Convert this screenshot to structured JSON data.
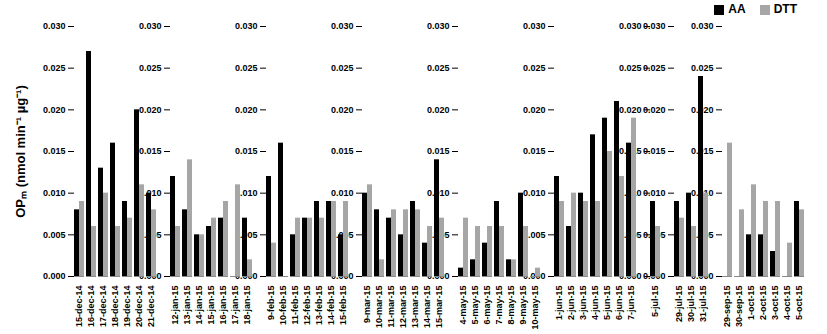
{
  "chart_data": {
    "type": "bar",
    "y_label": "OPₘ (nmol min⁻¹ µg⁻¹)",
    "categories": [
      "15-dec-14",
      "16-dec-14",
      "17-dec-14",
      "18-dec-14",
      "19-dec-14",
      "20-dec-14",
      "21-dec-14",
      null,
      "12-jan-15",
      "13-jan-15",
      "14-jan-15",
      "15-jan-15",
      "16-jan-15",
      "17-jan-15",
      "18-jan-15",
      null,
      "9-feb-15",
      "10-feb-15",
      "11-feb-15",
      "12-feb-15",
      "13-feb-15",
      "14-feb-15",
      "15-feb-15",
      null,
      "9-mar-15",
      "10-mar-15",
      "11-mar-15",
      "12-mar-15",
      "13-mar-15",
      "14-mar-15",
      "15-mar-15",
      null,
      "4-may-15",
      "5-may-15",
      "6-may-15",
      "7-may-15",
      "8-may-15",
      "9-may-15",
      "10-may-15",
      null,
      "1-jun-15",
      "2-jun-15",
      "3-jun-15",
      "4-jun-15",
      "5-jun-15",
      "6-jun-15",
      "7-jun-15",
      null,
      "5-jul-15",
      null,
      "29-jul-15",
      "30-jul-15",
      "31-jul-15",
      null,
      "29-sep-15",
      "30-sep-15",
      "1-oct-15",
      "2-oct-15",
      "3-oct-15",
      "4-oct-15",
      "5-oct-15"
    ],
    "series": [
      {
        "name": "AA",
        "color": "#000000",
        "values": [
          0.008,
          0.027,
          0.013,
          0.016,
          0.009,
          0.02,
          0.01,
          null,
          0.012,
          0.008,
          0.005,
          0.006,
          0.007,
          null,
          0.007,
          null,
          0.012,
          0.016,
          0.005,
          0.007,
          0.009,
          0.009,
          0.005,
          null,
          0.01,
          0.008,
          0.007,
          0.005,
          0.009,
          0.004,
          0.014,
          null,
          0.001,
          0.002,
          0.004,
          0.009,
          0.002,
          0.01,
          null,
          null,
          0.012,
          0.006,
          0.01,
          0.017,
          0.019,
          0.021,
          0.016,
          null,
          0.009,
          null,
          0.009,
          0.01,
          0.024,
          null,
          null,
          null,
          0.005,
          0.005,
          0.003,
          null,
          0.009
        ]
      },
      {
        "name": "DTT",
        "color": "#a6a6a6",
        "values": [
          0.009,
          0.006,
          0.01,
          0.006,
          0.007,
          0.011,
          0.008,
          null,
          0.006,
          0.014,
          0.005,
          0.007,
          0.009,
          0.011,
          0.002,
          null,
          0.004,
          null,
          0.007,
          0.007,
          0.007,
          0.009,
          0.009,
          null,
          0.011,
          0.002,
          0.008,
          0.008,
          0.008,
          0.006,
          0.007,
          null,
          0.007,
          0.006,
          0.006,
          0.006,
          0.002,
          0.006,
          0.001,
          null,
          0.009,
          0.01,
          0.009,
          0.009,
          0.015,
          0.012,
          0.019,
          null,
          0.006,
          null,
          0.007,
          0.006,
          0.01,
          null,
          0.016,
          0.008,
          0.011,
          0.009,
          0.009,
          0.004,
          0.008
        ]
      }
    ],
    "ylim": [
      0,
      0.03
    ],
    "yticks": [
      {
        "value": 0,
        "label": "0.000"
      },
      {
        "value": 0.005,
        "label": "0.005"
      },
      {
        "value": 0.01,
        "label": "0.010"
      },
      {
        "value": 0.015,
        "label": "0.015"
      },
      {
        "value": 0.02,
        "label": "0.020"
      },
      {
        "value": 0.025,
        "label": "0.025"
      },
      {
        "value": 0.03,
        "label": "0.030"
      }
    ],
    "legend": "top-right",
    "grid": false
  }
}
